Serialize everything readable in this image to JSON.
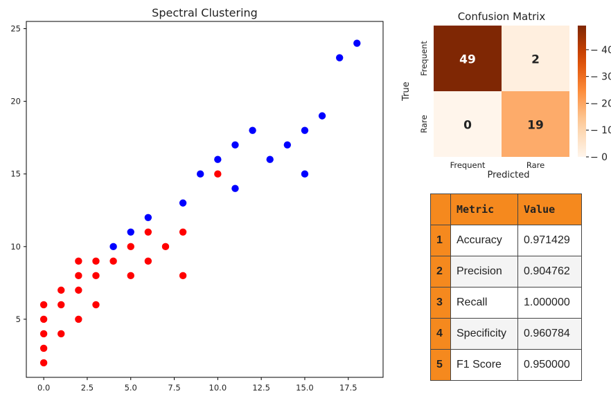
{
  "chart_data": [
    {
      "type": "scatter",
      "title": "Spectral Clustering",
      "xlim": [
        -1,
        19.5
      ],
      "ylim": [
        1,
        25.5
      ],
      "xticks": [
        "0.0",
        "2.5",
        "5.0",
        "7.5",
        "10.0",
        "12.5",
        "15.0",
        "17.5"
      ],
      "xtick_values": [
        0,
        2.5,
        5,
        7.5,
        10,
        12.5,
        15,
        17.5
      ],
      "yticks": [
        "5",
        "10",
        "15",
        "20",
        "25"
      ],
      "ytick_values": [
        5,
        10,
        15,
        20,
        25
      ],
      "grid": false,
      "series": [
        {
          "color": "#ff0000",
          "points": [
            [
              0,
              2
            ],
            [
              0,
              3
            ],
            [
              0,
              4
            ],
            [
              0,
              5
            ],
            [
              0,
              6
            ],
            [
              1,
              4
            ],
            [
              1,
              6
            ],
            [
              1,
              7
            ],
            [
              2,
              5
            ],
            [
              2,
              7
            ],
            [
              2,
              8
            ],
            [
              2,
              9
            ],
            [
              3,
              6
            ],
            [
              3,
              8
            ],
            [
              3,
              9
            ],
            [
              4,
              9
            ],
            [
              5,
              8
            ],
            [
              5,
              10
            ],
            [
              6,
              9
            ],
            [
              6,
              11
            ],
            [
              7,
              10
            ],
            [
              8,
              8
            ],
            [
              8,
              11
            ],
            [
              10,
              15
            ]
          ]
        },
        {
          "color": "#0000ff",
          "points": [
            [
              4,
              10
            ],
            [
              5,
              11
            ],
            [
              6,
              12
            ],
            [
              8,
              13
            ],
            [
              9,
              15
            ],
            [
              10,
              16
            ],
            [
              11,
              14
            ],
            [
              11,
              17
            ],
            [
              12,
              18
            ],
            [
              13,
              16
            ],
            [
              14,
              17
            ],
            [
              15,
              15
            ],
            [
              15,
              18
            ],
            [
              16,
              19
            ],
            [
              17,
              23
            ],
            [
              18,
              24
            ]
          ]
        }
      ]
    },
    {
      "type": "heatmap",
      "title": "Confusion Matrix",
      "xlabel": "Predicted",
      "ylabel": "True",
      "x_labels": [
        "Frequent",
        "Rare"
      ],
      "y_labels": [
        "Frequent",
        "Rare"
      ],
      "values": [
        [
          49,
          2
        ],
        [
          0,
          19
        ]
      ],
      "colorbar_ticks": [
        0,
        10,
        20,
        30,
        40
      ],
      "colorbar_range": [
        0,
        49
      ],
      "cmap": "Oranges"
    },
    {
      "type": "table",
      "columns": [
        "Metric",
        "Value"
      ],
      "rows": [
        {
          "index": "1",
          "metric": "Accuracy",
          "value": "0.971429"
        },
        {
          "index": "2",
          "metric": "Precision",
          "value": "0.904762"
        },
        {
          "index": "3",
          "metric": "Recall",
          "value": "1.000000"
        },
        {
          "index": "4",
          "metric": "Specificity",
          "value": "0.960784"
        },
        {
          "index": "5",
          "metric": "F1 Score",
          "value": "0.950000"
        }
      ],
      "header_color": "#f5891e"
    }
  ]
}
